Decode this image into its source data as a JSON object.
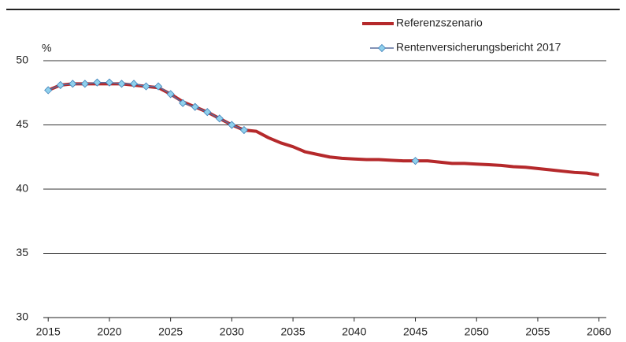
{
  "chart_data": {
    "type": "line",
    "y_label": "%",
    "x": [
      2015,
      2016,
      2017,
      2018,
      2019,
      2020,
      2021,
      2022,
      2023,
      2024,
      2025,
      2026,
      2027,
      2028,
      2029,
      2030,
      2031,
      2032,
      2033,
      2034,
      2035,
      2036,
      2037,
      2038,
      2039,
      2040,
      2041,
      2042,
      2043,
      2044,
      2045,
      2046,
      2047,
      2048,
      2049,
      2050,
      2051,
      2052,
      2053,
      2054,
      2055,
      2056,
      2057,
      2058,
      2059,
      2060
    ],
    "series": [
      {
        "name": "Referenzszenario",
        "color": "#b5292b",
        "marker": false,
        "values": [
          47.7,
          48.1,
          48.2,
          48.2,
          48.2,
          48.2,
          48.2,
          48.1,
          48.0,
          47.9,
          47.4,
          46.8,
          46.4,
          46.0,
          45.5,
          45.0,
          44.6,
          44.5,
          44.0,
          43.6,
          43.3,
          42.9,
          42.7,
          42.5,
          42.4,
          42.35,
          42.3,
          42.3,
          42.25,
          42.2,
          42.2,
          42.2,
          42.1,
          42.0,
          42.0,
          41.95,
          41.9,
          41.85,
          41.75,
          41.7,
          41.6,
          41.5,
          41.4,
          41.3,
          41.25,
          41.1
        ]
      },
      {
        "name": "Rentenversicherungsbericht 2017",
        "color": "#5a6e9e",
        "marker_color": "#8fd0ec",
        "marker": true,
        "values": [
          47.7,
          48.1,
          48.2,
          48.2,
          48.3,
          48.3,
          48.2,
          48.2,
          48.0,
          48.0,
          47.4,
          46.7,
          46.4,
          46.0,
          45.5,
          45.0,
          44.6,
          null,
          null,
          null,
          null,
          null,
          null,
          null,
          null,
          null,
          null,
          null,
          null,
          null,
          42.2,
          null,
          null,
          null,
          null,
          null,
          null,
          null,
          null,
          null,
          null,
          null,
          null,
          null,
          null,
          null
        ]
      }
    ],
    "xlim": [
      2014.6,
      2060.6
    ],
    "xticks": [
      2015,
      2020,
      2025,
      2030,
      2035,
      2040,
      2045,
      2050,
      2055,
      2060
    ],
    "ylim": [
      30,
      50
    ],
    "yticks": [
      30,
      35,
      40,
      45,
      50
    ],
    "grid": true,
    "legend": "top-right"
  }
}
